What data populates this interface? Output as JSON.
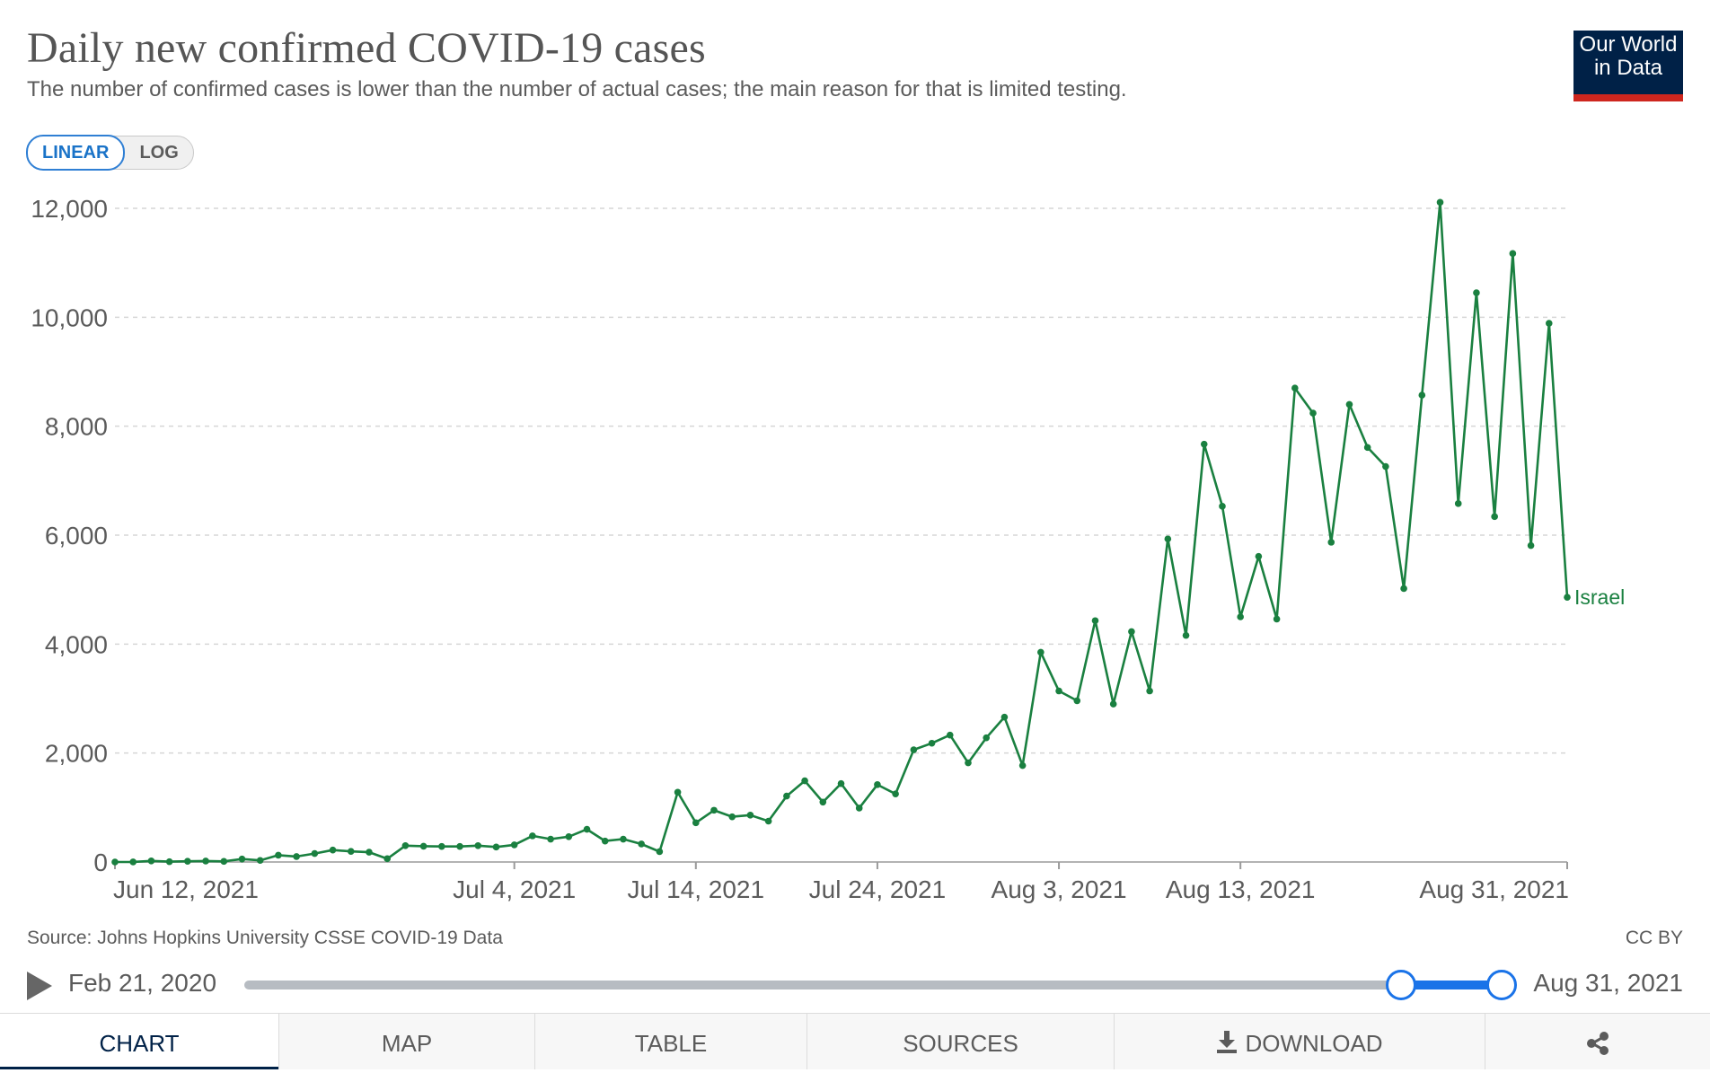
{
  "header": {
    "title": "Daily new confirmed COVID-19 cases",
    "subtitle": "The number of confirmed cases is lower than the number of actual cases; the main reason for that is limited testing.",
    "logo_line1": "Our World",
    "logo_line2": "in Data"
  },
  "scale_toggle": {
    "linear_label": "LINEAR",
    "log_label": "LOG",
    "selected": "LINEAR"
  },
  "footer": {
    "source": "Source: Johns Hopkins University CSSE COVID-19 Data",
    "license": "CC BY"
  },
  "timeline": {
    "start_label": "Feb 21, 2020",
    "end_label": "Aug 31, 2021",
    "range_start_fraction": 0.92,
    "range_end_fraction": 1.0
  },
  "tabs": [
    {
      "label": "CHART",
      "active": true
    },
    {
      "label": "MAP",
      "active": false
    },
    {
      "label": "TABLE",
      "active": false
    },
    {
      "label": "SOURCES",
      "active": false
    },
    {
      "label": "DOWNLOAD",
      "active": false
    },
    {
      "label": "",
      "icon": "share-icon",
      "active": false
    }
  ],
  "colors": {
    "series": "#1a8040",
    "accent": "#1a73e8",
    "brand": "#002147",
    "brand_red": "#ce261e"
  },
  "chart_data": {
    "type": "line",
    "title": "Daily new confirmed COVID-19 cases",
    "ylim": [
      0,
      12000
    ],
    "y_ticks": [
      0,
      2000,
      4000,
      6000,
      8000,
      10000,
      12000
    ],
    "y_tick_labels": [
      "0",
      "2,000",
      "4,000",
      "6,000",
      "8,000",
      "10,000",
      "12,000"
    ],
    "x_start": "2021-06-12",
    "x_end": "2021-08-31",
    "x_ticks": [
      {
        "date": "2021-06-12",
        "label": "Jun 12, 2021"
      },
      {
        "date": "2021-07-04",
        "label": "Jul 4, 2021"
      },
      {
        "date": "2021-07-14",
        "label": "Jul 14, 2021"
      },
      {
        "date": "2021-07-24",
        "label": "Jul 24, 2021"
      },
      {
        "date": "2021-08-03",
        "label": "Aug 3, 2021"
      },
      {
        "date": "2021-08-13",
        "label": "Aug 13, 2021"
      },
      {
        "date": "2021-08-31",
        "label": "Aug 31, 2021"
      }
    ],
    "grid": true,
    "series": [
      {
        "name": "Israel",
        "color": "#1a8040",
        "points": [
          [
            "2021-06-12",
            0
          ],
          [
            "2021-06-13",
            1
          ],
          [
            "2021-06-14",
            20
          ],
          [
            "2021-06-15",
            6
          ],
          [
            "2021-06-16",
            13
          ],
          [
            "2021-06-17",
            18
          ],
          [
            "2021-06-18",
            11
          ],
          [
            "2021-06-19",
            55
          ],
          [
            "2021-06-20",
            29
          ],
          [
            "2021-06-21",
            125
          ],
          [
            "2021-06-22",
            100
          ],
          [
            "2021-06-23",
            155
          ],
          [
            "2021-06-24",
            220
          ],
          [
            "2021-06-25",
            195
          ],
          [
            "2021-06-26",
            180
          ],
          [
            "2021-06-27",
            60
          ],
          [
            "2021-06-28",
            300
          ],
          [
            "2021-06-29",
            290
          ],
          [
            "2021-06-30",
            285
          ],
          [
            "2021-07-01",
            285
          ],
          [
            "2021-07-02",
            300
          ],
          [
            "2021-07-03",
            275
          ],
          [
            "2021-07-04",
            315
          ],
          [
            "2021-07-05",
            480
          ],
          [
            "2021-07-06",
            420
          ],
          [
            "2021-07-07",
            465
          ],
          [
            "2021-07-08",
            600
          ],
          [
            "2021-07-09",
            385
          ],
          [
            "2021-07-10",
            420
          ],
          [
            "2021-07-11",
            330
          ],
          [
            "2021-07-12",
            190
          ],
          [
            "2021-07-13",
            1280
          ],
          [
            "2021-07-14",
            720
          ],
          [
            "2021-07-15",
            950
          ],
          [
            "2021-07-16",
            830
          ],
          [
            "2021-07-17",
            860
          ],
          [
            "2021-07-18",
            750
          ],
          [
            "2021-07-19",
            1210
          ],
          [
            "2021-07-20",
            1490
          ],
          [
            "2021-07-21",
            1100
          ],
          [
            "2021-07-22",
            1440
          ],
          [
            "2021-07-23",
            990
          ],
          [
            "2021-07-24",
            1420
          ],
          [
            "2021-07-25",
            1250
          ],
          [
            "2021-07-26",
            2060
          ],
          [
            "2021-07-27",
            2180
          ],
          [
            "2021-07-28",
            2330
          ],
          [
            "2021-07-29",
            1820
          ],
          [
            "2021-07-30",
            2280
          ],
          [
            "2021-07-31",
            2660
          ],
          [
            "2021-08-01",
            1770
          ],
          [
            "2021-08-02",
            3850
          ],
          [
            "2021-08-03",
            3140
          ],
          [
            "2021-08-04",
            2960
          ],
          [
            "2021-08-05",
            4430
          ],
          [
            "2021-08-06",
            2900
          ],
          [
            "2021-08-07",
            4230
          ],
          [
            "2021-08-08",
            3140
          ],
          [
            "2021-08-09",
            5930
          ],
          [
            "2021-08-10",
            4160
          ],
          [
            "2021-08-11",
            7670
          ],
          [
            "2021-08-12",
            6530
          ],
          [
            "2021-08-13",
            4500
          ],
          [
            "2021-08-14",
            5610
          ],
          [
            "2021-08-15",
            4460
          ],
          [
            "2021-08-16",
            8700
          ],
          [
            "2021-08-17",
            8240
          ],
          [
            "2021-08-18",
            5870
          ],
          [
            "2021-08-19",
            8400
          ],
          [
            "2021-08-20",
            7610
          ],
          [
            "2021-08-21",
            7260
          ],
          [
            "2021-08-22",
            5020
          ],
          [
            "2021-08-23",
            8570
          ],
          [
            "2021-08-24",
            12110
          ],
          [
            "2021-08-25",
            6580
          ],
          [
            "2021-08-26",
            10450
          ],
          [
            "2021-08-27",
            6340
          ],
          [
            "2021-08-28",
            11170
          ],
          [
            "2021-08-29",
            5810
          ],
          [
            "2021-08-30",
            9890
          ],
          [
            "2021-08-31",
            4860
          ]
        ]
      }
    ]
  }
}
